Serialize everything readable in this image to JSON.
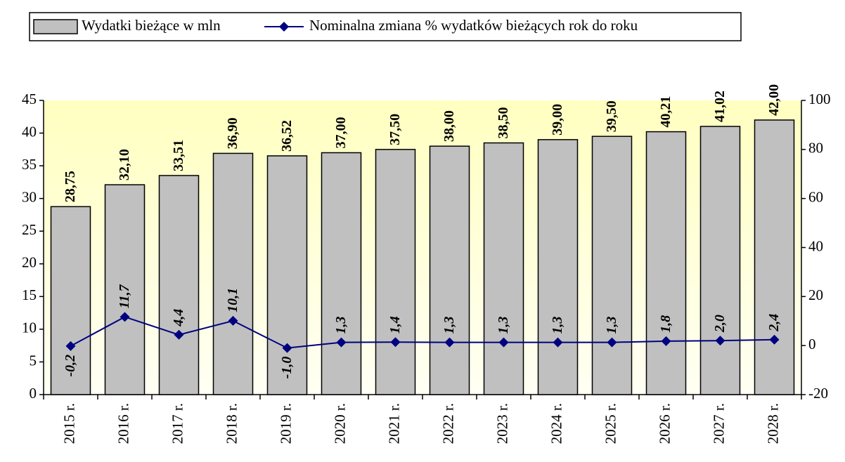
{
  "chart_data": {
    "type": "combo",
    "categories": [
      "2015 r.",
      "2016 r.",
      "2017 r.",
      "2018 r.",
      "2019 r.",
      "2020 r.",
      "2021 r.",
      "2022 r.",
      "2023 r.",
      "2024 r.",
      "2025 r.",
      "2026 r.",
      "2027 r.",
      "2028 r."
    ],
    "series": [
      {
        "name": "Wydatki bieżące w mln",
        "type": "bar",
        "color": "#c0c0c0",
        "axis": "y",
        "values": [
          28.75,
          32.1,
          33.51,
          36.9,
          36.52,
          37.0,
          37.5,
          38.0,
          38.5,
          39.0,
          39.5,
          40.21,
          41.02,
          42.0
        ],
        "value_labels": [
          "28,75",
          "32,10",
          "33,51",
          "36,90",
          "36,52",
          "37,00",
          "37,50",
          "38,00",
          "38,50",
          "39,00",
          "39,50",
          "40,21",
          "41,02",
          "42,00"
        ]
      },
      {
        "name": "Nominalna zmiana % wydatków bieżących rok do roku",
        "type": "line",
        "color": "#000080",
        "axis": "y2",
        "values": [
          -0.2,
          11.7,
          4.4,
          10.1,
          -1.0,
          1.3,
          1.4,
          1.3,
          1.3,
          1.3,
          1.3,
          1.8,
          2.0,
          2.4
        ],
        "value_labels": [
          "-0,2",
          "11,7",
          "4,4",
          "10,1",
          "-1,0",
          "1,3",
          "1,4",
          "1,3",
          "1,3",
          "1,3",
          "1,3",
          "1,8",
          "2,0",
          "2,4"
        ],
        "negative_label_color": "#ff0000"
      }
    ],
    "ylim": [
      0,
      45
    ],
    "yticks": [
      0,
      5,
      10,
      15,
      20,
      25,
      30,
      35,
      40,
      45
    ],
    "y2lim": [
      -20,
      100
    ],
    "y2ticks": [
      -20,
      0,
      20,
      40,
      60,
      80,
      100
    ]
  }
}
